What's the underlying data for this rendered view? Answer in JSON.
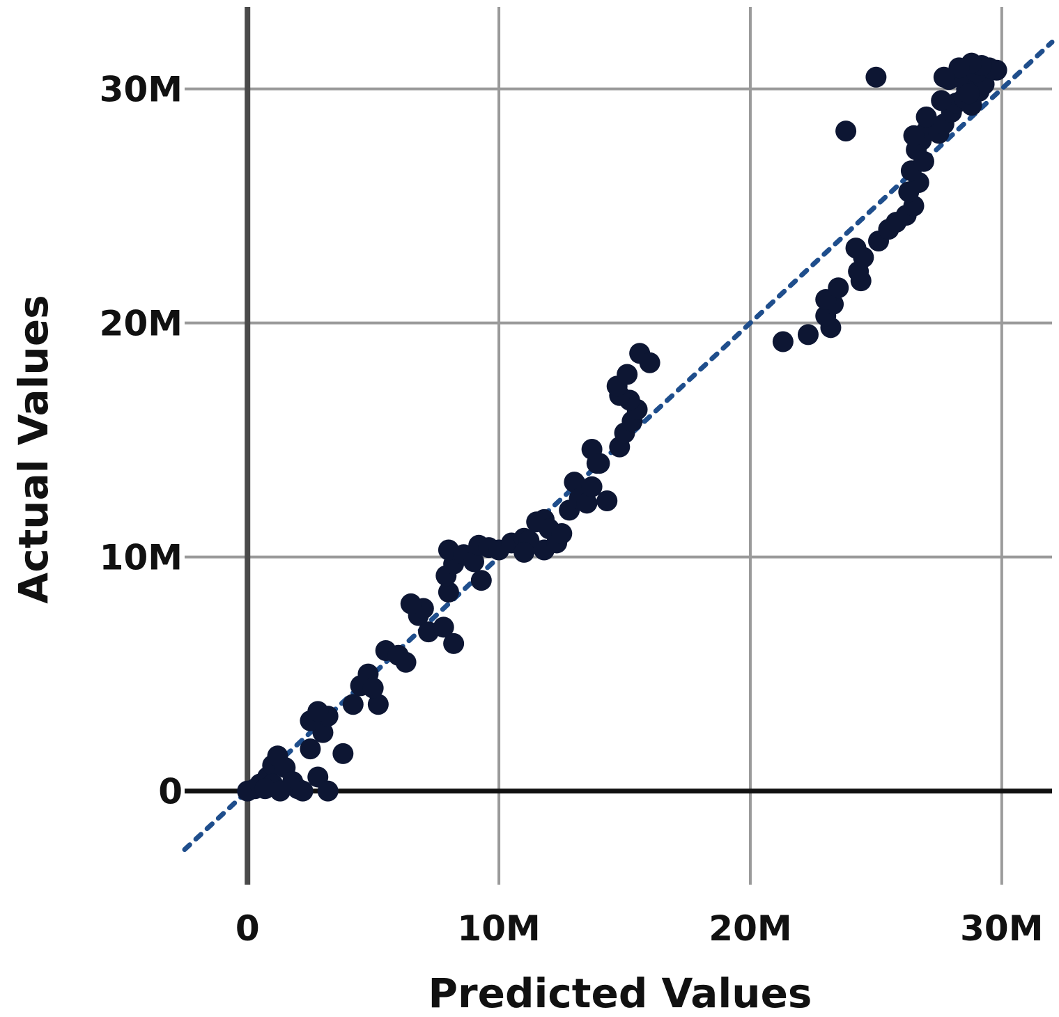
{
  "chart_data": {
    "type": "scatter",
    "title": "",
    "xlabel": "Predicted Values",
    "ylabel": "Actual Values",
    "xlim": [
      -2500000,
      32000000
    ],
    "ylim": [
      -4000000,
      33500000
    ],
    "xticks": [
      {
        "value": 0,
        "label": "0"
      },
      {
        "value": 10000000,
        "label": "10M"
      },
      {
        "value": 20000000,
        "label": "20M"
      },
      {
        "value": 30000000,
        "label": "30M"
      }
    ],
    "yticks": [
      {
        "value": 0,
        "label": "0"
      },
      {
        "value": 10000000,
        "label": "10M"
      },
      {
        "value": 20000000,
        "label": "20M"
      },
      {
        "value": 30000000,
        "label": "30M"
      }
    ],
    "grid": true,
    "point_color": "#0d1633",
    "reference_line": {
      "style": "dotted",
      "color": "#1f4e8c",
      "x": [
        -2500000,
        32000000
      ],
      "y": [
        -2500000,
        32000000
      ]
    },
    "points": [
      [
        0,
        0
      ],
      [
        300000,
        100000
      ],
      [
        500000,
        300000
      ],
      [
        800000,
        600000
      ],
      [
        1000000,
        1100000
      ],
      [
        1200000,
        1500000
      ],
      [
        1500000,
        1000000
      ],
      [
        1800000,
        400000
      ],
      [
        2000000,
        100000
      ],
      [
        2200000,
        0
      ],
      [
        1000000,
        300000
      ],
      [
        700000,
        100000
      ],
      [
        1300000,
        0
      ],
      [
        2800000,
        600000
      ],
      [
        3200000,
        0
      ],
      [
        3800000,
        1600000
      ],
      [
        2500000,
        1800000
      ],
      [
        3000000,
        2500000
      ],
      [
        2500000,
        3000000
      ],
      [
        3200000,
        3200000
      ],
      [
        2800000,
        3400000
      ],
      [
        4200000,
        3700000
      ],
      [
        4500000,
        4500000
      ],
      [
        4800000,
        5000000
      ],
      [
        5200000,
        3700000
      ],
      [
        5000000,
        4400000
      ],
      [
        5500000,
        6000000
      ],
      [
        6000000,
        5800000
      ],
      [
        6300000,
        5500000
      ],
      [
        6800000,
        7500000
      ],
      [
        7000000,
        7800000
      ],
      [
        6500000,
        8000000
      ],
      [
        7200000,
        6800000
      ],
      [
        7800000,
        7000000
      ],
      [
        8200000,
        6300000
      ],
      [
        8000000,
        8500000
      ],
      [
        7900000,
        9200000
      ],
      [
        8200000,
        9700000
      ],
      [
        8000000,
        10300000
      ],
      [
        8600000,
        10100000
      ],
      [
        9000000,
        9800000
      ],
      [
        9200000,
        10500000
      ],
      [
        9600000,
        10400000
      ],
      [
        9300000,
        9000000
      ],
      [
        10000000,
        10300000
      ],
      [
        10500000,
        10600000
      ],
      [
        11000000,
        10800000
      ],
      [
        11500000,
        11500000
      ],
      [
        11800000,
        11600000
      ],
      [
        12000000,
        11200000
      ],
      [
        11200000,
        10700000
      ],
      [
        11000000,
        10200000
      ],
      [
        11800000,
        10300000
      ],
      [
        12300000,
        10600000
      ],
      [
        12500000,
        11000000
      ],
      [
        12800000,
        12000000
      ],
      [
        13000000,
        13200000
      ],
      [
        13200000,
        12500000
      ],
      [
        13500000,
        12300000
      ],
      [
        13700000,
        13000000
      ],
      [
        13900000,
        14000000
      ],
      [
        13700000,
        14600000
      ],
      [
        14000000,
        14000000
      ],
      [
        14300000,
        12400000
      ],
      [
        14800000,
        14700000
      ],
      [
        15000000,
        15300000
      ],
      [
        15300000,
        15800000
      ],
      [
        15500000,
        16300000
      ],
      [
        15200000,
        16700000
      ],
      [
        14800000,
        16900000
      ],
      [
        14700000,
        17300000
      ],
      [
        15100000,
        17800000
      ],
      [
        15600000,
        18700000
      ],
      [
        16000000,
        18300000
      ],
      [
        21300000,
        19200000
      ],
      [
        22300000,
        19500000
      ],
      [
        23200000,
        19800000
      ],
      [
        23000000,
        20300000
      ],
      [
        23300000,
        20800000
      ],
      [
        23000000,
        21000000
      ],
      [
        23500000,
        21500000
      ],
      [
        24400000,
        21800000
      ],
      [
        24300000,
        22200000
      ],
      [
        24500000,
        22800000
      ],
      [
        24200000,
        23200000
      ],
      [
        25100000,
        23500000
      ],
      [
        25500000,
        24000000
      ],
      [
        25800000,
        24300000
      ],
      [
        26200000,
        24600000
      ],
      [
        26500000,
        25000000
      ],
      [
        26300000,
        25600000
      ],
      [
        26700000,
        26000000
      ],
      [
        26400000,
        26500000
      ],
      [
        26900000,
        26900000
      ],
      [
        26600000,
        27400000
      ],
      [
        26800000,
        27800000
      ],
      [
        27000000,
        28200000
      ],
      [
        26500000,
        28000000
      ],
      [
        27500000,
        28100000
      ],
      [
        27000000,
        28800000
      ],
      [
        27700000,
        28500000
      ],
      [
        28000000,
        29000000
      ],
      [
        28200000,
        29400000
      ],
      [
        28500000,
        29600000
      ],
      [
        28800000,
        29300000
      ],
      [
        29100000,
        29900000
      ],
      [
        28600000,
        30000000
      ],
      [
        29300000,
        30200000
      ],
      [
        28300000,
        30500000
      ],
      [
        27900000,
        30400000
      ],
      [
        29000000,
        30700000
      ],
      [
        29500000,
        30900000
      ],
      [
        29800000,
        30800000
      ],
      [
        29200000,
        31000000
      ],
      [
        28800000,
        31100000
      ],
      [
        28300000,
        30900000
      ],
      [
        27700000,
        30500000
      ],
      [
        28700000,
        29800000
      ],
      [
        27600000,
        29500000
      ],
      [
        23800000,
        28200000
      ],
      [
        25000000,
        30500000
      ]
    ]
  }
}
